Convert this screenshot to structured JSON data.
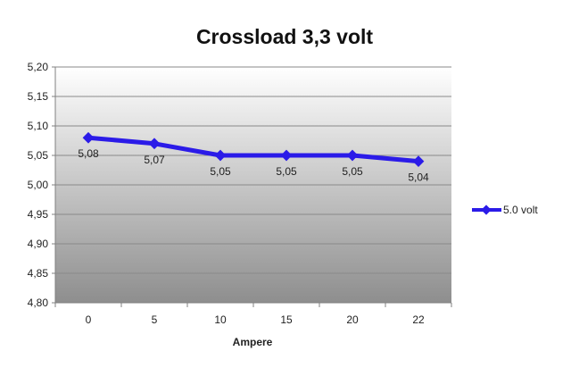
{
  "chart_data": {
    "type": "line",
    "title": "Crossload 3,3 volt",
    "xlabel": "Ampere",
    "ylabel": "",
    "categories": [
      "0",
      "5",
      "10",
      "15",
      "20",
      "22"
    ],
    "series": [
      {
        "name": "5.0 volt",
        "values": [
          5.08,
          5.07,
          5.05,
          5.05,
          5.05,
          5.04
        ],
        "data_labels": [
          "5,08",
          "5,07",
          "5,05",
          "5,05",
          "5,05",
          "5,04"
        ],
        "color": "#2b1be8"
      }
    ],
    "ylim": [
      4.8,
      5.2
    ],
    "y_ticks": [
      "4,80",
      "4,85",
      "4,90",
      "4,95",
      "5,00",
      "5,05",
      "5,10",
      "5,15",
      "5,20"
    ],
    "grid": true,
    "legend_position": "right",
    "plot_background": "gradient-white-to-gray"
  }
}
